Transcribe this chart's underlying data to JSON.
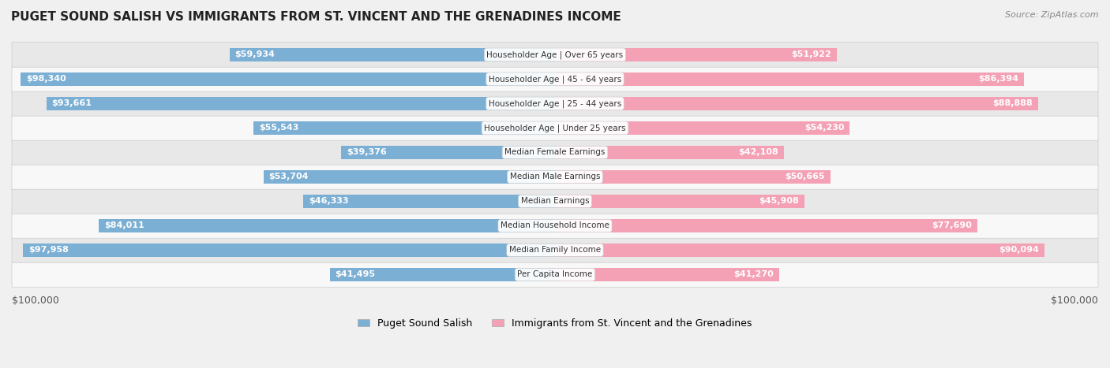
{
  "title": "PUGET SOUND SALISH VS IMMIGRANTS FROM ST. VINCENT AND THE GRENADINES INCOME",
  "source": "Source: ZipAtlas.com",
  "categories": [
    "Per Capita Income",
    "Median Family Income",
    "Median Household Income",
    "Median Earnings",
    "Median Male Earnings",
    "Median Female Earnings",
    "Householder Age | Under 25 years",
    "Householder Age | 25 - 44 years",
    "Householder Age | 45 - 64 years",
    "Householder Age | Over 65 years"
  ],
  "left_values": [
    41495,
    97958,
    84011,
    46333,
    53704,
    39376,
    55543,
    93661,
    98340,
    59934
  ],
  "right_values": [
    41270,
    90094,
    77690,
    45908,
    50665,
    42108,
    54230,
    88888,
    86394,
    51922
  ],
  "left_labels": [
    "$41,495",
    "$97,958",
    "$84,011",
    "$46,333",
    "$53,704",
    "$39,376",
    "$55,543",
    "$93,661",
    "$98,340",
    "$59,934"
  ],
  "right_labels": [
    "$41,270",
    "$90,094",
    "$77,690",
    "$45,908",
    "$50,665",
    "$42,108",
    "$54,230",
    "$88,888",
    "$86,394",
    "$51,922"
  ],
  "max_value": 100000,
  "left_color": "#7BAFD4",
  "right_color": "#F4A0B5",
  "left_color_dark": "#5B8DB8",
  "right_color_dark": "#E8698A",
  "bg_color": "#f0f0f0",
  "row_bg_light": "#f8f8f8",
  "row_bg_dark": "#e8e8e8",
  "legend_left": "Puget Sound Salish",
  "legend_right": "Immigrants from St. Vincent and the Grenadines",
  "xlabel_left": "$100,000",
  "xlabel_right": "$100,000"
}
